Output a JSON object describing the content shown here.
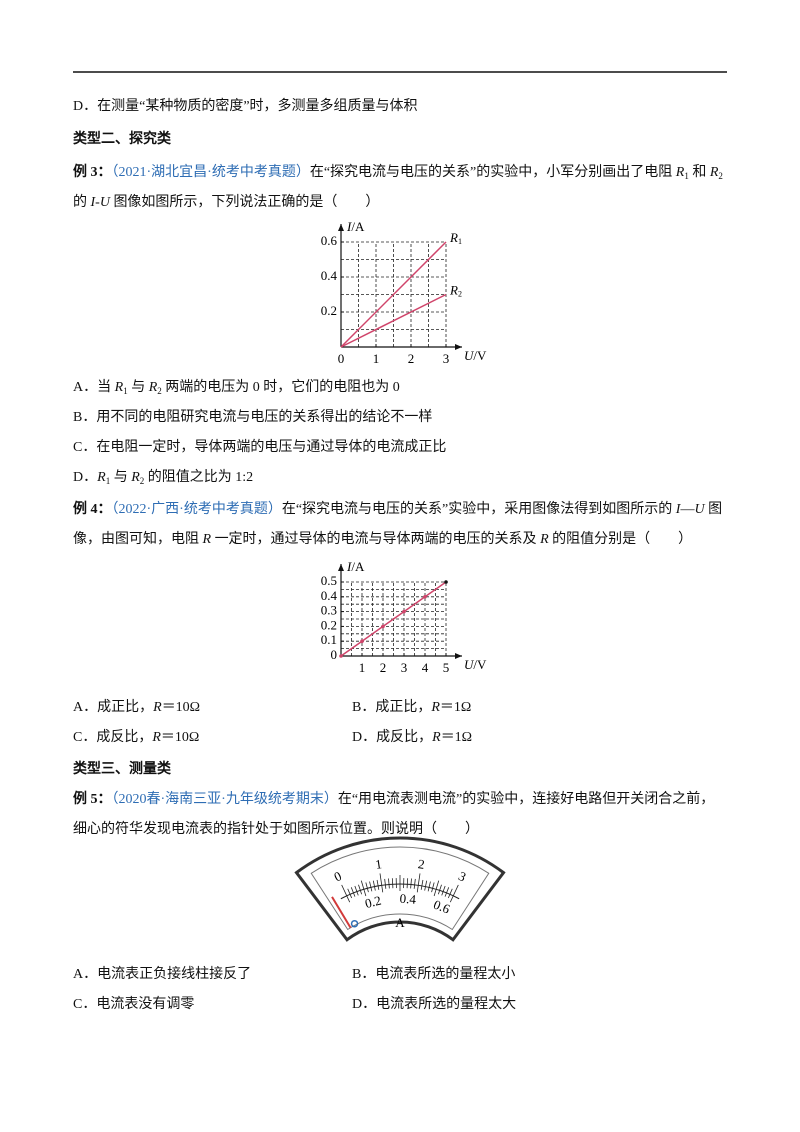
{
  "prev_option": "D．在测量“某种物质的密度”时，多测量多组质量与体积",
  "section2": "类型二、探究类",
  "example3": {
    "label": "例 3：",
    "source": "（2021·湖北宜昌·统考中考真题）",
    "text": [
      "在“探究电流与电压的关系”的实验中，小军分别画出了电阻 ",
      {
        "italic": "R"
      },
      {
        "sub": "1"
      },
      " 和 ",
      {
        "italic": "R"
      },
      {
        "sub": "2"
      },
      " 的 ",
      {
        "italic": "I-U"
      },
      " 图像如图所示，下列说法正确的是（　　）"
    ],
    "figure": {
      "type": "line",
      "xlabel": [
        {
          "italic": "U"
        },
        "/V"
      ],
      "ylabel": [
        {
          "italic": "I"
        },
        "/A"
      ],
      "xlim": [
        0,
        3
      ],
      "ylim": [
        0,
        0.6
      ],
      "xticks": [
        0,
        1,
        2,
        3
      ],
      "yticks": [
        0.2,
        0.4,
        0.6
      ],
      "grid": true,
      "color": "#d0456b",
      "markers": false,
      "series": [
        {
          "name": [
            {
              "italic": "R"
            },
            {
              "sub": "1"
            }
          ],
          "x": [
            0,
            3
          ],
          "values": [
            0,
            0.6
          ]
        },
        {
          "name": [
            {
              "italic": "R"
            },
            {
              "sub": "2"
            }
          ],
          "x": [
            0,
            3
          ],
          "values": [
            0,
            0.3
          ]
        }
      ]
    },
    "options": [
      [
        "A．当 ",
        {
          "italic": "R"
        },
        {
          "sub": "1"
        },
        " 与 ",
        {
          "italic": "R"
        },
        {
          "sub": "2"
        },
        " 两端的电压为 0 时，它们的电阻也为 0"
      ],
      [
        "B．用不同的电阻研究电流与电压的关系得出的结论不一样"
      ],
      [
        "C．在电阻一定时，导体两端的电压与通过导体的电流成正比"
      ],
      [
        "D．",
        {
          "italic": "R"
        },
        {
          "sub": "1"
        },
        " 与 ",
        {
          "italic": "R"
        },
        {
          "sub": "2"
        },
        " 的阻值之比为 1:2"
      ]
    ]
  },
  "example4": {
    "label": "例 4：",
    "source": "（2022·广西·统考中考真题）",
    "text": [
      "在“探究电流与电压的关系”实验中，采用图像法得到如图所示的 ",
      {
        "italic": "I"
      },
      "—",
      {
        "italic": "U"
      },
      " 图像，由图可知，电阻 ",
      {
        "italic": "R"
      },
      " 一定时，通过导体的电流与导体两端的电压的关系及 ",
      {
        "italic": "R"
      },
      " 的阻值分别是（　　）"
    ],
    "figure": {
      "type": "line",
      "xlabel": [
        {
          "italic": "U"
        },
        "/V"
      ],
      "ylabel": [
        {
          "italic": "I"
        },
        "/A"
      ],
      "xlim": [
        0,
        5
      ],
      "ylim": [
        0,
        0.5
      ],
      "xticks": [
        1,
        2,
        3,
        4,
        5
      ],
      "yticks": [
        0,
        0.1,
        0.2,
        0.3,
        0.4,
        0.5
      ],
      "grid": true,
      "color": "#d0456b",
      "markers": true,
      "series": [
        {
          "x": [
            0,
            1,
            2,
            3,
            4,
            5
          ],
          "values": [
            0,
            0.1,
            0.2,
            0.3,
            0.4,
            0.5
          ]
        }
      ]
    },
    "options": [
      [
        "A．成正比，",
        {
          "italic": "R"
        },
        "＝10Ω"
      ],
      [
        "B．成正比，",
        {
          "italic": "R"
        },
        "＝1Ω"
      ],
      [
        "C．成反比，",
        {
          "italic": "R"
        },
        "＝10Ω"
      ],
      [
        "D．成反比，",
        {
          "italic": "R"
        },
        "＝1Ω"
      ]
    ]
  },
  "section3": "类型三、测量类",
  "example5": {
    "label": "例 5：",
    "source": "（2020春·海南三亚·九年级统考期末）",
    "text": [
      "在“用电流表测电流”的实验中，连接好电路但开关闭合之前，细心的符华发现电流表的指针处于如图所示位置。则说明（　　）"
    ],
    "ammeter": {
      "upper_scale": [
        0,
        1,
        2,
        3
      ],
      "lower_scale": [
        0.2,
        0.4,
        0.6
      ],
      "unit": "A"
    },
    "options": [
      [
        "A．电流表正负接线柱接反了"
      ],
      [
        "B．电流表所选的量程太小"
      ],
      [
        "C．电流表没有调零"
      ],
      [
        "D．电流表所选的量程太大"
      ]
    ]
  }
}
